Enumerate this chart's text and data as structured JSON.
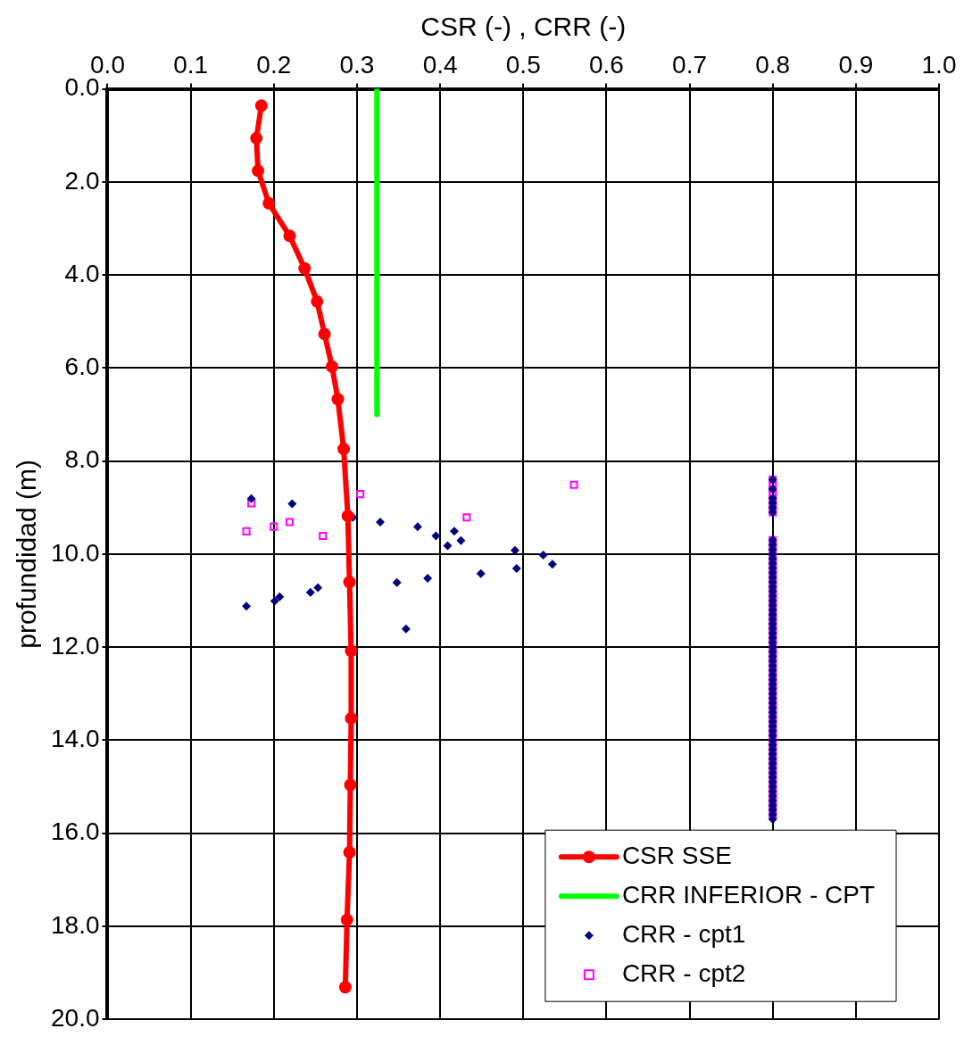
{
  "chart_data": {
    "type": "scatter",
    "xlabel": "CSR (-) , CRR (-)",
    "ylabel": "profundidad (m)",
    "xlim": [
      0,
      1
    ],
    "xticks": [
      {
        "value": 0,
        "label": "0.0"
      },
      {
        "value": 0.1,
        "label": "0.1"
      },
      {
        "value": 0.2,
        "label": "0.2"
      },
      {
        "value": 0.3,
        "label": "0.3"
      },
      {
        "value": 0.4,
        "label": "0.4"
      },
      {
        "value": 0.5,
        "label": "0.5"
      },
      {
        "value": 0.6,
        "label": "0.6"
      },
      {
        "value": 0.7,
        "label": "0.7"
      },
      {
        "value": 0.8,
        "label": "0.8"
      },
      {
        "value": 0.9,
        "label": "0.9"
      },
      {
        "value": 1,
        "label": "1.0"
      }
    ],
    "ylim": [
      20,
      0
    ],
    "yticks": [
      {
        "value": 0,
        "label": "0.0"
      },
      {
        "value": 2,
        "label": "2.0"
      },
      {
        "value": 4,
        "label": "4.0"
      },
      {
        "value": 6,
        "label": "6.0"
      },
      {
        "value": 8,
        "label": "8.0"
      },
      {
        "value": 10,
        "label": "10.0"
      },
      {
        "value": 12,
        "label": "12.0"
      },
      {
        "value": 14,
        "label": "14.0"
      },
      {
        "value": 16,
        "label": "16.0"
      },
      {
        "value": 18,
        "label": "18.0"
      },
      {
        "value": 20,
        "label": "20.0"
      }
    ],
    "grid": true,
    "legend": "bottom right",
    "series": [
      {
        "name": "CSR SSE",
        "type": "line",
        "color": "#ff0000",
        "marker": "circle",
        "x": [
          0.185,
          0.179,
          0.181,
          0.194,
          0.219,
          0.237,
          0.252,
          0.261,
          0.27,
          0.277,
          0.284,
          0.289,
          0.291,
          0.293,
          0.293,
          0.292,
          0.291,
          0.288,
          0.286
        ],
        "values": [
          0.36,
          1.06,
          1.76,
          2.46,
          3.16,
          3.86,
          4.57,
          5.27,
          5.97,
          6.67,
          7.74,
          9.18,
          10.6,
          12.08,
          13.53,
          14.96,
          16.41,
          17.86,
          19.31
        ]
      },
      {
        "name": "CRR INFERIOR - CPT",
        "type": "line",
        "color": "#00ff00",
        "marker": "none",
        "x": [
          0.324,
          0.324
        ],
        "values": [
          0,
          7.0
        ]
      },
      {
        "name": "CRR - cpt1",
        "type": "scatter",
        "color": "#000080",
        "marker": "diamond",
        "x": [
          0.173,
          0.222,
          0.295,
          0.328,
          0.373,
          0.395,
          0.417,
          0.409,
          0.425,
          0.49,
          0.524,
          0.535,
          0.492,
          0.449,
          0.385,
          0.348,
          0.253,
          0.244,
          0.207,
          0.201,
          0.167,
          0.359,
          0.8,
          0.8,
          0.8,
          0.8,
          0.8,
          0.8,
          0.8,
          0.8,
          0.8,
          0.8,
          0.8,
          0.8,
          0.8,
          0.8,
          0.8,
          0.8,
          0.8,
          0.8,
          0.8,
          0.8,
          0.8,
          0.8,
          0.8,
          0.8,
          0.8,
          0.8,
          0.8,
          0.8,
          0.8,
          0.8,
          0.8,
          0.8,
          0.8,
          0.8,
          0.8,
          0.8,
          0.8,
          0.8,
          0.8,
          0.8,
          0.8,
          0.8,
          0.8,
          0.8,
          0.8,
          0.8,
          0.8,
          0.8,
          0.8,
          0.8,
          0.8,
          0.8,
          0.8,
          0.8,
          0.8,
          0.8,
          0.8,
          0.8,
          0.8,
          0.8,
          0.8,
          0.8,
          0.8,
          0.8,
          0.8,
          0.8,
          0.8
        ],
        "values": [
          8.81,
          8.92,
          9.21,
          9.31,
          9.41,
          9.61,
          9.51,
          9.82,
          9.71,
          9.92,
          10.02,
          10.22,
          10.31,
          10.42,
          10.52,
          10.61,
          10.72,
          10.82,
          10.92,
          11.01,
          11.12,
          11.61,
          8.4,
          8.6,
          8.8,
          8.9,
          9.0,
          9.1,
          9.7,
          9.8,
          9.9,
          10.0,
          10.1,
          10.2,
          10.3,
          10.4,
          10.5,
          10.6,
          10.7,
          10.8,
          10.9,
          11.0,
          11.1,
          11.2,
          11.3,
          11.4,
          11.5,
          11.6,
          11.7,
          11.8,
          11.9,
          12.0,
          12.1,
          12.2,
          12.3,
          12.4,
          12.5,
          12.6,
          12.7,
          12.8,
          12.9,
          13.0,
          13.1,
          13.2,
          13.3,
          13.4,
          13.5,
          13.6,
          13.7,
          13.8,
          13.9,
          14.0,
          14.1,
          14.2,
          14.3,
          14.4,
          14.5,
          14.6,
          14.7,
          14.8,
          14.9,
          15.0,
          15.1,
          15.2,
          15.3,
          15.4,
          15.5,
          15.6,
          15.7
        ]
      },
      {
        "name": "CRR - cpt2",
        "type": "scatter",
        "color": "#ff00ff",
        "marker": "square",
        "x": [
          0.173,
          0.304,
          0.561,
          0.432,
          0.219,
          0.2,
          0.167,
          0.259,
          0.8,
          0.8,
          0.8,
          0.8,
          0.8,
          0.8,
          0.8,
          0.8,
          0.8,
          0.8,
          0.8,
          0.8,
          0.8,
          0.8,
          0.8,
          0.8,
          0.8,
          0.8,
          0.8,
          0.8,
          0.8,
          0.8,
          0.8,
          0.8,
          0.8,
          0.8,
          0.8,
          0.8,
          0.8,
          0.8,
          0.8,
          0.8,
          0.8,
          0.8,
          0.8,
          0.8,
          0.8,
          0.8,
          0.8,
          0.8,
          0.8,
          0.8,
          0.8,
          0.8,
          0.8,
          0.8,
          0.8,
          0.8,
          0.8,
          0.8,
          0.8,
          0.8,
          0.8,
          0.8,
          0.8,
          0.8,
          0.8,
          0.8,
          0.8,
          0.8,
          0.8,
          0.8,
          0.8,
          0.8,
          0.8,
          0.8,
          0.8,
          0.8
        ],
        "values": [
          8.91,
          8.71,
          8.51,
          9.21,
          9.31,
          9.41,
          9.51,
          9.61,
          8.4,
          8.5,
          8.6,
          8.7,
          8.8,
          8.9,
          9.0,
          9.1,
          9.7,
          9.8,
          9.9,
          10.0,
          10.1,
          10.2,
          10.3,
          10.4,
          10.5,
          10.6,
          10.7,
          10.8,
          10.9,
          11.0,
          11.1,
          11.2,
          11.3,
          11.4,
          11.5,
          11.6,
          11.7,
          11.8,
          11.9,
          12.0,
          12.1,
          12.2,
          12.3,
          12.4,
          12.5,
          12.6,
          12.7,
          12.8,
          12.9,
          13.0,
          13.1,
          13.2,
          13.3,
          13.4,
          13.5,
          13.6,
          13.7,
          13.8,
          13.9,
          14.0,
          14.1,
          14.2,
          14.3,
          14.4,
          14.5,
          14.6,
          14.7,
          14.8,
          14.9,
          15.0,
          15.1,
          15.2,
          15.3,
          15.4,
          15.5,
          15.6
        ]
      }
    ]
  }
}
